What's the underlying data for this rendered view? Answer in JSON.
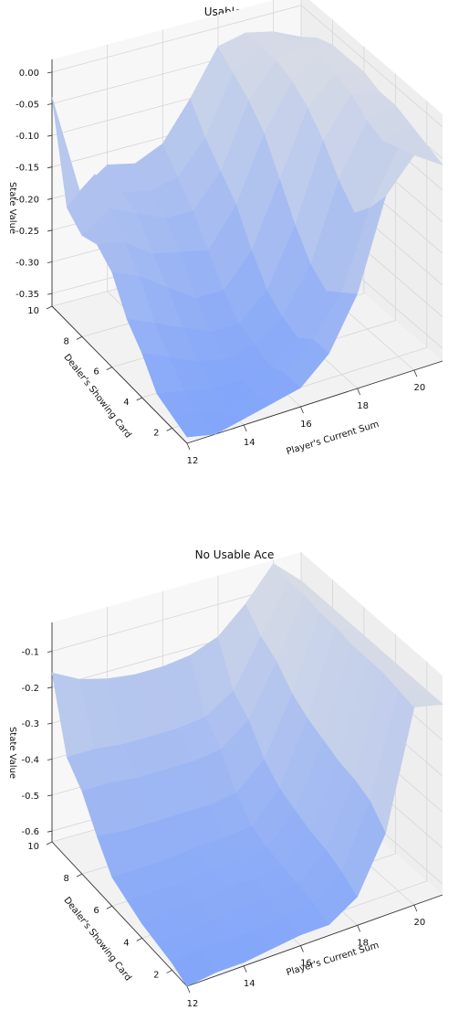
{
  "chart_data": [
    {
      "type": "surface3d",
      "title": "Usable Ace",
      "xlabel": "Player's Current Sum",
      "ylabel": "Dealer's Showing Card",
      "zlabel": "State Value",
      "xticks": [
        "12",
        "14",
        "16",
        "18",
        "20"
      ],
      "yticks": [
        "2",
        "4",
        "6",
        "8",
        "10"
      ],
      "zticks": [
        "0.00",
        "-0.05",
        "-0.10",
        "-0.15",
        "-0.20",
        "-0.25",
        "-0.30",
        "-0.35"
      ],
      "x": [
        12,
        13,
        14,
        15,
        16,
        17,
        18,
        19,
        20,
        21
      ],
      "y": [
        1,
        2,
        3,
        4,
        5,
        6,
        7,
        8,
        9,
        10
      ],
      "zlim": [
        -0.37,
        0.02
      ],
      "z_rows_by_dealer": [
        [
          -0.36,
          -0.37,
          -0.36,
          -0.35,
          -0.34,
          -0.3,
          -0.22,
          -0.08,
          -0.03,
          -0.06
        ],
        [
          -0.35,
          -0.36,
          -0.37,
          -0.36,
          -0.34,
          -0.3,
          -0.24,
          -0.12,
          -0.04,
          -0.05
        ],
        [
          -0.34,
          -0.35,
          -0.36,
          -0.36,
          -0.35,
          -0.32,
          -0.26,
          -0.15,
          -0.05,
          -0.04
        ],
        [
          -0.3,
          -0.32,
          -0.34,
          -0.35,
          -0.34,
          -0.31,
          -0.24,
          -0.12,
          -0.04,
          -0.03
        ],
        [
          -0.27,
          -0.29,
          -0.31,
          -0.33,
          -0.33,
          -0.29,
          -0.2,
          -0.08,
          -0.02,
          -0.03
        ],
        [
          -0.22,
          -0.24,
          -0.27,
          -0.3,
          -0.3,
          -0.25,
          -0.15,
          -0.05,
          -0.01,
          -0.02
        ],
        [
          -0.2,
          -0.21,
          -0.24,
          -0.25,
          -0.26,
          -0.2,
          -0.1,
          -0.03,
          0.0,
          -0.02
        ],
        [
          -0.21,
          -0.18,
          -0.2,
          -0.22,
          -0.22,
          -0.17,
          -0.07,
          -0.02,
          -0.01,
          -0.02
        ],
        [
          -0.19,
          -0.15,
          -0.19,
          -0.2,
          -0.19,
          -0.14,
          -0.05,
          -0.02,
          -0.02,
          -0.03
        ],
        [
          -0.04,
          -0.2,
          -0.17,
          -0.18,
          -0.16,
          -0.1,
          -0.03,
          -0.02,
          -0.03,
          -0.05
        ]
      ]
    },
    {
      "type": "surface3d",
      "title": "No Usable Ace",
      "xlabel": "Player's Current Sum",
      "ylabel": "Dealer's Showing Card",
      "zlabel": "State Value",
      "xticks": [
        "12",
        "14",
        "16",
        "18",
        "20"
      ],
      "yticks": [
        "2",
        "4",
        "6",
        "8",
        "10"
      ],
      "zticks": [
        "-0.1",
        "-0.2",
        "-0.3",
        "-0.4",
        "-0.5",
        "-0.6"
      ],
      "x": [
        12,
        13,
        14,
        15,
        16,
        17,
        18,
        19,
        20,
        21
      ],
      "y": [
        1,
        2,
        3,
        4,
        5,
        6,
        7,
        8,
        9,
        10
      ],
      "zlim": [
        -0.63,
        -0.02
      ],
      "z_rows_by_dealer": [
        [
          -0.63,
          -0.62,
          -0.62,
          -0.61,
          -0.6,
          -0.6,
          -0.55,
          -0.4,
          -0.08,
          -0.1
        ],
        [
          -0.61,
          -0.6,
          -0.6,
          -0.6,
          -0.59,
          -0.58,
          -0.52,
          -0.35,
          -0.07,
          -0.1
        ],
        [
          -0.6,
          -0.6,
          -0.59,
          -0.58,
          -0.58,
          -0.57,
          -0.5,
          -0.33,
          -0.06,
          -0.1
        ],
        [
          -0.59,
          -0.58,
          -0.58,
          -0.57,
          -0.57,
          -0.56,
          -0.49,
          -0.32,
          -0.06,
          -0.1
        ],
        [
          -0.57,
          -0.57,
          -0.57,
          -0.56,
          -0.56,
          -0.55,
          -0.47,
          -0.3,
          -0.06,
          -0.1
        ],
        [
          -0.55,
          -0.55,
          -0.55,
          -0.54,
          -0.54,
          -0.53,
          -0.45,
          -0.28,
          -0.05,
          -0.1
        ],
        [
          -0.48,
          -0.49,
          -0.49,
          -0.49,
          -0.49,
          -0.48,
          -0.41,
          -0.25,
          -0.05,
          -0.1
        ],
        [
          -0.4,
          -0.4,
          -0.41,
          -0.41,
          -0.41,
          -0.4,
          -0.34,
          -0.2,
          -0.04,
          -0.1
        ],
        [
          -0.35,
          -0.35,
          -0.36,
          -0.36,
          -0.36,
          -0.35,
          -0.3,
          -0.17,
          -0.04,
          -0.1
        ],
        [
          -0.16,
          -0.2,
          -0.22,
          -0.23,
          -0.23,
          -0.22,
          -0.19,
          -0.12,
          -0.03,
          -0.1
        ]
      ]
    }
  ]
}
